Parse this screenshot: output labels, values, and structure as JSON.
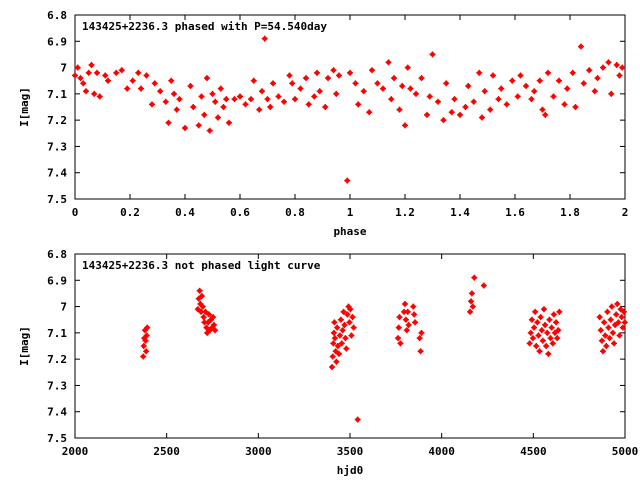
{
  "chart_data": [
    {
      "type": "scatter",
      "title": "143425+2236.3 phased with P=54.540day",
      "xlabel": "phase",
      "ylabel": "I[mag]",
      "xlim": [
        0,
        2
      ],
      "ylim": [
        6.8,
        7.5
      ],
      "y_inverted": true,
      "grid": false,
      "legend": "none",
      "marker_color": "#ff0000",
      "x_ticks": [
        "0",
        "0.2",
        "0.4",
        "0.6",
        "0.8",
        "1",
        "1.2",
        "1.4",
        "1.6",
        "1.8",
        "2"
      ],
      "y_ticks": [
        "6.8",
        "6.9",
        "7",
        "7.1",
        "7.2",
        "7.3",
        "7.4",
        "7.5"
      ],
      "points": [
        [
          0.0,
          7.03
        ],
        [
          0.01,
          7.0
        ],
        [
          0.02,
          7.04
        ],
        [
          0.03,
          7.06
        ],
        [
          0.04,
          7.09
        ],
        [
          0.05,
          7.02
        ],
        [
          0.06,
          6.99
        ],
        [
          0.07,
          7.1
        ],
        [
          0.08,
          7.02
        ],
        [
          0.09,
          7.11
        ],
        [
          0.11,
          7.03
        ],
        [
          0.12,
          7.05
        ],
        [
          0.15,
          7.02
        ],
        [
          0.17,
          7.01
        ],
        [
          0.19,
          7.08
        ],
        [
          0.21,
          7.05
        ],
        [
          0.23,
          7.02
        ],
        [
          0.24,
          7.08
        ],
        [
          0.26,
          7.03
        ],
        [
          0.28,
          7.14
        ],
        [
          0.29,
          7.06
        ],
        [
          0.31,
          7.09
        ],
        [
          0.33,
          7.13
        ],
        [
          0.34,
          7.21
        ],
        [
          0.35,
          7.05
        ],
        [
          0.36,
          7.1
        ],
        [
          0.37,
          7.16
        ],
        [
          0.38,
          7.12
        ],
        [
          0.4,
          7.23
        ],
        [
          0.42,
          7.07
        ],
        [
          0.43,
          7.15
        ],
        [
          0.45,
          7.22
        ],
        [
          0.46,
          7.11
        ],
        [
          0.47,
          7.18
        ],
        [
          0.48,
          7.04
        ],
        [
          0.49,
          7.24
        ],
        [
          0.5,
          7.1
        ],
        [
          0.51,
          7.13
        ],
        [
          0.52,
          7.19
        ],
        [
          0.53,
          7.08
        ],
        [
          0.54,
          7.15
        ],
        [
          0.55,
          7.12
        ],
        [
          0.56,
          7.21
        ],
        [
          0.58,
          7.12
        ],
        [
          0.6,
          7.11
        ],
        [
          0.62,
          7.14
        ],
        [
          0.64,
          7.12
        ],
        [
          0.65,
          7.05
        ],
        [
          0.67,
          7.16
        ],
        [
          0.68,
          7.09
        ],
        [
          0.69,
          6.89
        ],
        [
          0.7,
          7.12
        ],
        [
          0.71,
          7.15
        ],
        [
          0.72,
          7.06
        ],
        [
          0.74,
          7.11
        ],
        [
          0.76,
          7.13
        ],
        [
          0.78,
          7.03
        ],
        [
          0.79,
          7.06
        ],
        [
          0.8,
          7.12
        ],
        [
          0.82,
          7.08
        ],
        [
          0.84,
          7.04
        ],
        [
          0.85,
          7.14
        ],
        [
          0.87,
          7.11
        ],
        [
          0.88,
          7.02
        ],
        [
          0.89,
          7.09
        ],
        [
          0.91,
          7.15
        ],
        [
          0.92,
          7.04
        ],
        [
          0.94,
          7.01
        ],
        [
          0.95,
          7.1
        ],
        [
          0.96,
          7.03
        ],
        [
          0.99,
          7.43
        ],
        [
          1.0,
          7.02
        ],
        [
          1.02,
          7.06
        ],
        [
          1.03,
          7.14
        ],
        [
          1.05,
          7.09
        ],
        [
          1.07,
          7.17
        ],
        [
          1.08,
          7.01
        ],
        [
          1.1,
          7.06
        ],
        [
          1.12,
          7.08
        ],
        [
          1.14,
          6.98
        ],
        [
          1.15,
          7.12
        ],
        [
          1.16,
          7.04
        ],
        [
          1.18,
          7.16
        ],
        [
          1.19,
          7.07
        ],
        [
          1.2,
          7.22
        ],
        [
          1.21,
          7.0
        ],
        [
          1.22,
          7.08
        ],
        [
          1.24,
          7.1
        ],
        [
          1.26,
          7.04
        ],
        [
          1.28,
          7.18
        ],
        [
          1.29,
          7.11
        ],
        [
          1.3,
          6.95
        ],
        [
          1.32,
          7.13
        ],
        [
          1.34,
          7.2
        ],
        [
          1.35,
          7.06
        ],
        [
          1.37,
          7.17
        ],
        [
          1.38,
          7.12
        ],
        [
          1.4,
          7.18
        ],
        [
          1.42,
          7.15
        ],
        [
          1.43,
          7.07
        ],
        [
          1.45,
          7.13
        ],
        [
          1.47,
          7.02
        ],
        [
          1.48,
          7.19
        ],
        [
          1.49,
          7.09
        ],
        [
          1.51,
          7.16
        ],
        [
          1.52,
          7.03
        ],
        [
          1.54,
          7.12
        ],
        [
          1.55,
          7.08
        ],
        [
          1.57,
          7.14
        ],
        [
          1.59,
          7.05
        ],
        [
          1.61,
          7.11
        ],
        [
          1.62,
          7.03
        ],
        [
          1.64,
          7.07
        ],
        [
          1.66,
          7.12
        ],
        [
          1.67,
          7.09
        ],
        [
          1.69,
          7.05
        ],
        [
          1.7,
          7.16
        ],
        [
          1.71,
          7.18
        ],
        [
          1.72,
          7.02
        ],
        [
          1.74,
          7.11
        ],
        [
          1.76,
          7.05
        ],
        [
          1.78,
          7.14
        ],
        [
          1.79,
          7.08
        ],
        [
          1.81,
          7.02
        ],
        [
          1.82,
          7.15
        ],
        [
          1.84,
          6.92
        ],
        [
          1.85,
          7.06
        ],
        [
          1.87,
          7.01
        ],
        [
          1.89,
          7.09
        ],
        [
          1.9,
          7.04
        ],
        [
          1.92,
          7.0
        ],
        [
          1.94,
          6.98
        ],
        [
          1.95,
          7.1
        ],
        [
          1.97,
          6.99
        ],
        [
          1.98,
          7.03
        ],
        [
          1.99,
          7.0
        ]
      ]
    },
    {
      "type": "scatter",
      "title": "143425+2236.3 not phased light curve",
      "xlabel": "hjd0",
      "ylabel": "I[mag]",
      "xlim": [
        2000,
        5000
      ],
      "ylim": [
        6.8,
        7.5
      ],
      "y_inverted": true,
      "grid": false,
      "legend": "none",
      "marker_color": "#ff0000",
      "x_ticks": [
        "2000",
        "2500",
        "3000",
        "3500",
        "4000",
        "4500",
        "5000"
      ],
      "y_ticks": [
        "6.8",
        "6.9",
        "7",
        "7.1",
        "7.2",
        "7.3",
        "7.4",
        "7.5"
      ],
      "points": [
        [
          2372,
          7.19
        ],
        [
          2375,
          7.15
        ],
        [
          2378,
          7.12
        ],
        [
          2382,
          7.09
        ],
        [
          2385,
          7.13
        ],
        [
          2388,
          7.17
        ],
        [
          2391,
          7.11
        ],
        [
          2394,
          7.08
        ],
        [
          2670,
          7.01
        ],
        [
          2675,
          6.97
        ],
        [
          2680,
          6.94
        ],
        [
          2684,
          6.99
        ],
        [
          2688,
          7.02
        ],
        [
          2692,
          6.96
        ],
        [
          2697,
          7.0
        ],
        [
          2702,
          7.04
        ],
        [
          2706,
          7.06
        ],
        [
          2712,
          7.02
        ],
        [
          2717,
          7.08
        ],
        [
          2721,
          7.1
        ],
        [
          2726,
          7.06
        ],
        [
          2731,
          7.03
        ],
        [
          2736,
          7.09
        ],
        [
          2742,
          7.05
        ],
        [
          2748,
          7.08
        ],
        [
          2753,
          7.04
        ],
        [
          2758,
          7.07
        ],
        [
          2764,
          7.09
        ],
        [
          3402,
          7.23
        ],
        [
          3406,
          7.19
        ],
        [
          3409,
          7.14
        ],
        [
          3412,
          7.1
        ],
        [
          3415,
          7.06
        ],
        [
          3418,
          7.12
        ],
        [
          3422,
          7.17
        ],
        [
          3426,
          7.21
        ],
        [
          3430,
          7.08
        ],
        [
          3434,
          7.15
        ],
        [
          3440,
          7.18
        ],
        [
          3445,
          7.11
        ],
        [
          3450,
          7.05
        ],
        [
          3455,
          7.14
        ],
        [
          3460,
          7.09
        ],
        [
          3465,
          7.02
        ],
        [
          3470,
          7.07
        ],
        [
          3475,
          7.12
        ],
        [
          3480,
          7.16
        ],
        [
          3486,
          7.03
        ],
        [
          3492,
          7.0
        ],
        [
          3497,
          7.06
        ],
        [
          3502,
          7.01
        ],
        [
          3508,
          7.11
        ],
        [
          3514,
          7.04
        ],
        [
          3520,
          7.08
        ],
        [
          3542,
          7.43
        ],
        [
          3762,
          7.12
        ],
        [
          3766,
          7.08
        ],
        [
          3770,
          7.04
        ],
        [
          3775,
          7.14
        ],
        [
          3795,
          7.02
        ],
        [
          3800,
          6.99
        ],
        [
          3805,
          7.05
        ],
        [
          3810,
          7.09
        ],
        [
          3815,
          7.02
        ],
        [
          3820,
          7.07
        ],
        [
          3845,
          7.0
        ],
        [
          3850,
          7.03
        ],
        [
          3855,
          7.06
        ],
        [
          3880,
          7.12
        ],
        [
          3885,
          7.17
        ],
        [
          3890,
          7.1
        ],
        [
          4155,
          7.02
        ],
        [
          4160,
          6.98
        ],
        [
          4165,
          6.95
        ],
        [
          4170,
          7.0
        ],
        [
          4178,
          6.89
        ],
        [
          4230,
          6.92
        ],
        [
          4480,
          7.14
        ],
        [
          4486,
          7.1
        ],
        [
          4492,
          7.05
        ],
        [
          4498,
          7.12
        ],
        [
          4504,
          7.08
        ],
        [
          4510,
          7.02
        ],
        [
          4516,
          7.15
        ],
        [
          4522,
          7.06
        ],
        [
          4528,
          7.11
        ],
        [
          4534,
          7.17
        ],
        [
          4540,
          7.04
        ],
        [
          4546,
          7.09
        ],
        [
          4552,
          7.13
        ],
        [
          4558,
          7.01
        ],
        [
          4564,
          7.07
        ],
        [
          4570,
          7.15
        ],
        [
          4576,
          7.1
        ],
        [
          4582,
          7.18
        ],
        [
          4588,
          7.05
        ],
        [
          4594,
          7.12
        ],
        [
          4600,
          7.08
        ],
        [
          4606,
          7.14
        ],
        [
          4612,
          7.03
        ],
        [
          4618,
          7.1
        ],
        [
          4624,
          7.06
        ],
        [
          4630,
          7.12
        ],
        [
          4636,
          7.09
        ],
        [
          4642,
          7.02
        ],
        [
          4862,
          7.04
        ],
        [
          4868,
          7.09
        ],
        [
          4874,
          7.13
        ],
        [
          4880,
          7.17
        ],
        [
          4886,
          7.06
        ],
        [
          4892,
          7.11
        ],
        [
          4898,
          7.15
        ],
        [
          4904,
          7.02
        ],
        [
          4910,
          7.08
        ],
        [
          4916,
          7.12
        ],
        [
          4922,
          7.05
        ],
        [
          4928,
          7.0
        ],
        [
          4934,
          7.1
        ],
        [
          4940,
          7.14
        ],
        [
          4946,
          7.07
        ],
        [
          4952,
          7.03
        ],
        [
          4958,
          6.99
        ],
        [
          4964,
          7.06
        ],
        [
          4970,
          7.11
        ],
        [
          4976,
          7.01
        ],
        [
          4982,
          7.04
        ],
        [
          4988,
          7.08
        ],
        [
          4994,
          7.02
        ],
        [
          4999,
          7.06
        ]
      ]
    }
  ]
}
